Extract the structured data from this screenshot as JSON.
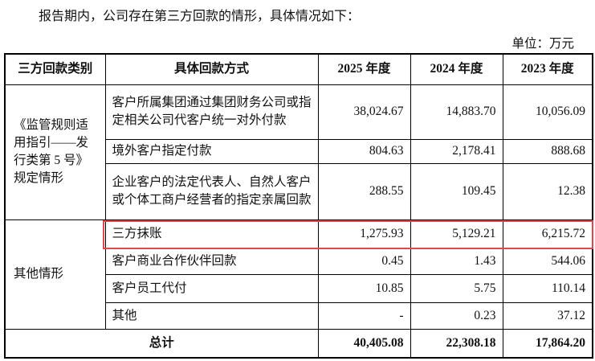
{
  "intro": "报告期内，公司存在第三方回款的情形，具体情况如下：",
  "unit": "单位：万元",
  "table": {
    "header": [
      "三方回款类别",
      "具体回款方式",
      "2025 年度",
      "2024 年度",
      "2023 年度"
    ],
    "groups": [
      {
        "category": "《监管规则适用指引——发行类第 5 号》规定情形",
        "rows": [
          {
            "method": "客户所属集团通过集团财务公司或指定相关公司代客户统一对外付款",
            "values": [
              "38,024.67",
              "14,883.70",
              "10,056.09"
            ]
          },
          {
            "method": "境外客户指定付款",
            "values": [
              "804.63",
              "2,178.41",
              "888.68"
            ]
          },
          {
            "method": "企业客户的法定代表人、自然人客户或个体工商户经营者的指定亲属回款",
            "values": [
              "288.55",
              "109.45",
              "12.38"
            ]
          }
        ]
      },
      {
        "category": "其他情形",
        "rows": [
          {
            "method": "三方抹账",
            "values": [
              "1,275.93",
              "5,129.21",
              "6,215.72"
            ]
          },
          {
            "method": "客户商业合作伙伴回款",
            "values": [
              "0.45",
              "1.43",
              "544.06"
            ]
          },
          {
            "method": "客户员工代付",
            "values": [
              "10.85",
              "5.75",
              "110.14"
            ]
          },
          {
            "method": "其他",
            "values": [
              "-",
              "0.23",
              "37.12"
            ]
          }
        ]
      }
    ],
    "total": {
      "label": "总计",
      "values": [
        "40,405.08",
        "22,308.18",
        "17,864.20"
      ]
    }
  }
}
